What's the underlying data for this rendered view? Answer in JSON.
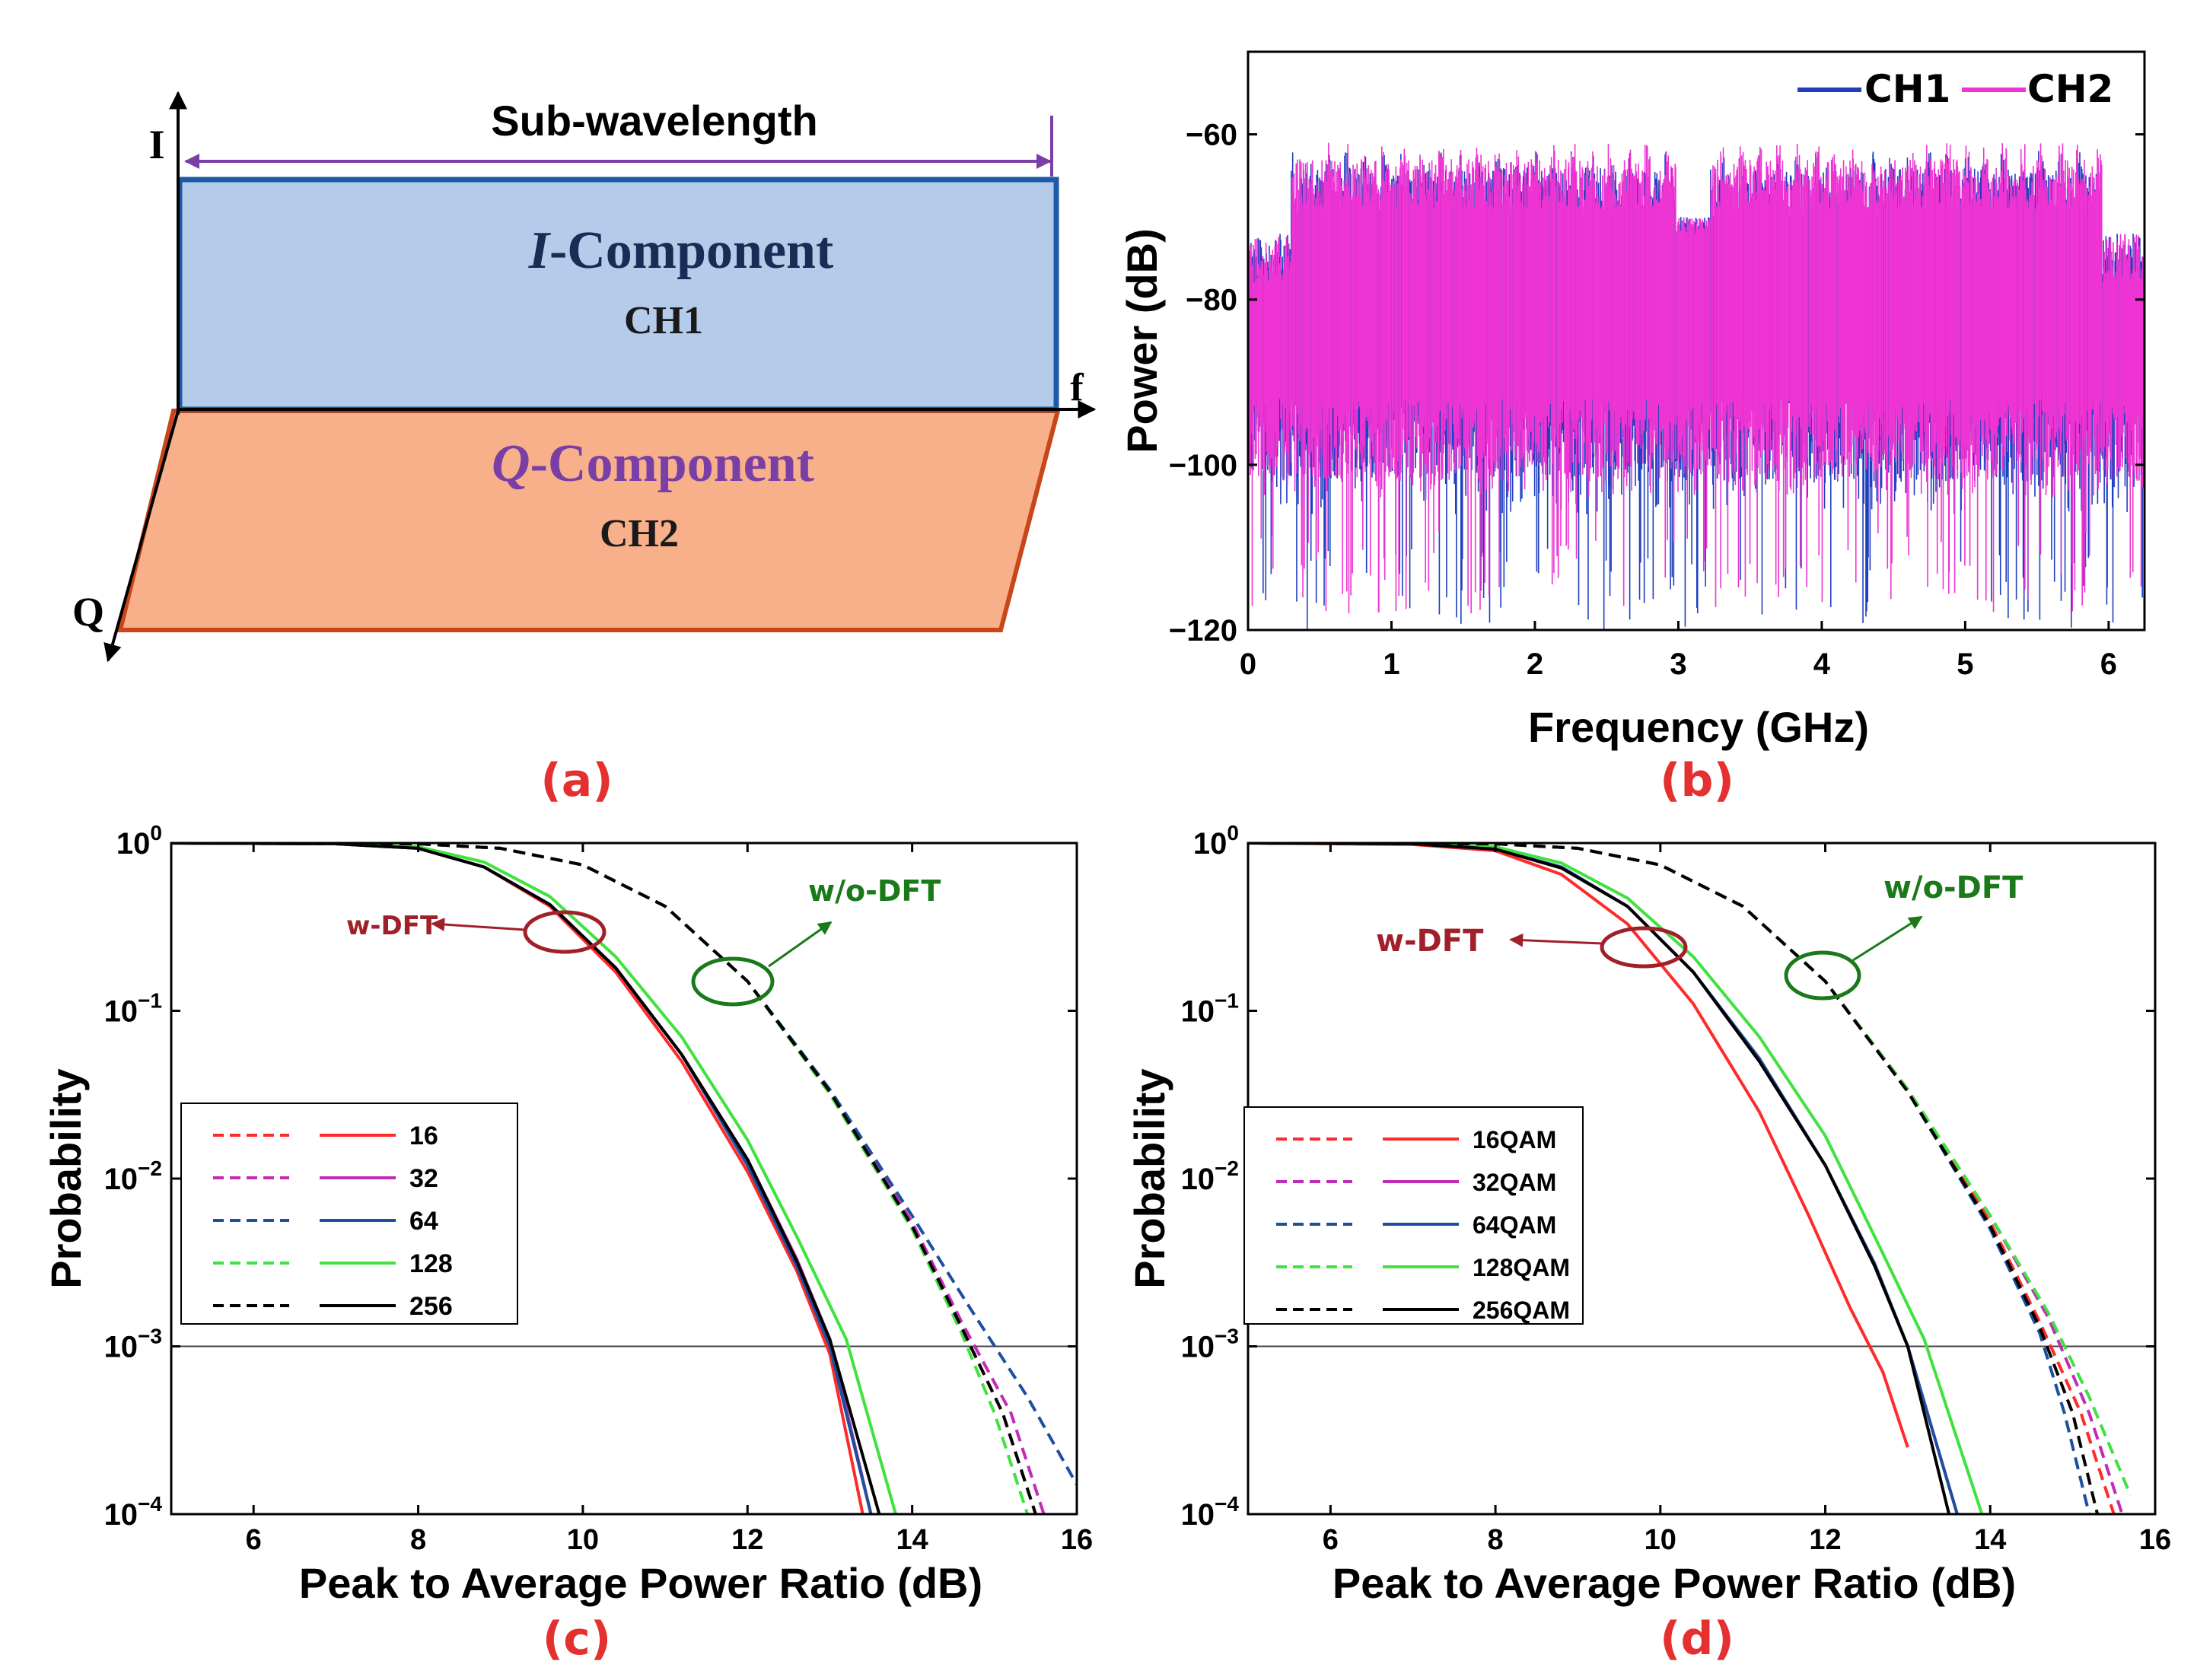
{
  "colors": {
    "ch1": "#1f3fbf",
    "ch2": "#ee34d2",
    "s16": "#ff2a2a",
    "s32": "#c02cb8",
    "s64": "#1d4fa0",
    "s128": "#3fe23f",
    "s256": "#000000",
    "iblock": "#b4cbe9",
    "qblock": "#f7b08a",
    "arrow_purple": "#7a3fa5",
    "wdft": "#a0202a",
    "wodft": "#1a7a1a",
    "panel_label": "#e53030"
  },
  "panel_a": {
    "label": "(a)",
    "axis_i": "I",
    "axis_q": "Q",
    "axis_f": "f",
    "span_label": "Sub-wavelength",
    "i_block": {
      "title_italic": "I",
      "title_rest": "-Component",
      "channel": "CH1"
    },
    "q_block": {
      "title_italic": "Q",
      "title_rest": "-Component",
      "channel": "CH2"
    }
  },
  "chart_data": [
    {
      "panel": "(b)",
      "type": "line",
      "xlabel": "Frequency (GHz)",
      "ylabel": "Power (dB)",
      "xlim": [
        0,
        6.25
      ],
      "ylim": [
        -120,
        -50
      ],
      "xticks": [
        0,
        1,
        2,
        3,
        4,
        5,
        6
      ],
      "yticks": [
        -60,
        -80,
        -100,
        -120
      ],
      "legend": [
        "CH1",
        "CH2"
      ],
      "legend_position": "top-right",
      "series": [
        {
          "name": "CH1",
          "color": "#1f3fbf",
          "envelope_top_db": -62,
          "floor_db": -110,
          "notch_center_ghz": 3.1,
          "notch_top_db": -70,
          "edge_top_db": -72,
          "occupied_ghz": [
            0.3,
            5.95
          ]
        },
        {
          "name": "CH2",
          "color": "#ee34d2",
          "envelope_top_db": -61,
          "floor_db": -108,
          "notch_center_ghz": 3.1,
          "notch_top_db": -70,
          "edge_top_db": -72,
          "occupied_ghz": [
            0.3,
            5.95
          ]
        }
      ]
    },
    {
      "panel": "(c)",
      "type": "line",
      "yscale": "log",
      "xlabel": "Peak to Average Power Ratio (dB)",
      "ylabel": "Probability",
      "xlim": [
        5,
        16
      ],
      "ylim": [
        0.0001,
        1
      ],
      "xticks": [
        6,
        8,
        10,
        12,
        14,
        16
      ],
      "ytick_base": "10",
      "ytick_exps": [
        "0",
        "-1",
        "-2",
        "-3",
        "-4"
      ],
      "reference_line": 0.001,
      "legend_position": "middle-left",
      "annotations": [
        "w-DFT",
        "w/o-DFT"
      ],
      "series": [
        {
          "name": "16",
          "dft": true,
          "color": "#ff2a2a",
          "x": [
            5.0,
            7.0,
            8.0,
            8.8,
            9.6,
            10.4,
            11.2,
            12.0,
            12.6,
            13.0,
            13.4
          ],
          "y": [
            1,
            0.99,
            0.93,
            0.72,
            0.42,
            0.17,
            0.05,
            0.011,
            0.0028,
            0.0009,
            0.0001
          ]
        },
        {
          "name": "32",
          "dft": true,
          "color": "#c02cb8",
          "x": [
            5.0,
            7.0,
            8.0,
            8.8,
            9.6,
            10.4,
            11.2,
            12.0,
            12.6,
            13.0,
            13.5
          ],
          "y": [
            1,
            0.99,
            0.93,
            0.72,
            0.43,
            0.18,
            0.055,
            0.013,
            0.0033,
            0.0011,
            0.0001
          ]
        },
        {
          "name": "64",
          "dft": true,
          "color": "#1d4fa0",
          "x": [
            5.0,
            7.0,
            8.0,
            8.8,
            9.6,
            10.4,
            11.2,
            12.0,
            12.6,
            13.0,
            13.5
          ],
          "y": [
            1,
            0.99,
            0.93,
            0.72,
            0.43,
            0.18,
            0.055,
            0.012,
            0.003,
            0.001,
            0.0001
          ]
        },
        {
          "name": "128",
          "dft": true,
          "color": "#3fe23f",
          "x": [
            5.0,
            7.0,
            8.0,
            8.8,
            9.6,
            10.4,
            11.2,
            12.0,
            12.6,
            13.2,
            13.8
          ],
          "y": [
            1,
            0.99,
            0.95,
            0.77,
            0.48,
            0.21,
            0.07,
            0.017,
            0.0045,
            0.0011,
            0.0001
          ]
        },
        {
          "name": "256",
          "dft": true,
          "color": "#000000",
          "x": [
            5.0,
            7.0,
            8.0,
            8.8,
            9.6,
            10.4,
            11.2,
            12.0,
            12.6,
            13.0,
            13.6
          ],
          "y": [
            1,
            0.99,
            0.93,
            0.72,
            0.43,
            0.18,
            0.055,
            0.013,
            0.0032,
            0.0011,
            0.0001
          ]
        },
        {
          "name": "16",
          "dft": false,
          "color": "#ff2a2a",
          "x": [
            5.0,
            8.0,
            9.0,
            10.0,
            11.0,
            12.0,
            13.0,
            14.0,
            14.6,
            15.1,
            15.5
          ],
          "y": [
            1,
            0.99,
            0.93,
            0.74,
            0.42,
            0.15,
            0.032,
            0.005,
            0.0013,
            0.0004,
            0.0001
          ]
        },
        {
          "name": "32",
          "dft": false,
          "color": "#c02cb8",
          "x": [
            5.0,
            8.0,
            9.0,
            10.0,
            11.0,
            12.0,
            13.0,
            14.0,
            14.6,
            15.2,
            15.6
          ],
          "y": [
            1,
            0.99,
            0.93,
            0.74,
            0.42,
            0.15,
            0.033,
            0.0055,
            0.0014,
            0.0004,
            0.0001
          ]
        },
        {
          "name": "64",
          "dft": false,
          "color": "#1d4fa0",
          "x": [
            5.0,
            8.0,
            9.0,
            10.0,
            11.0,
            12.0,
            13.0,
            14.0,
            14.7,
            15.4,
            16.0
          ],
          "y": [
            1,
            0.99,
            0.93,
            0.74,
            0.42,
            0.15,
            0.034,
            0.006,
            0.0017,
            0.0005,
            0.00015
          ]
        },
        {
          "name": "128",
          "dft": false,
          "color": "#3fe23f",
          "x": [
            5.0,
            8.0,
            9.0,
            10.0,
            11.0,
            12.0,
            13.0,
            14.0,
            14.6,
            15.0,
            15.4
          ],
          "y": [
            1,
            0.99,
            0.93,
            0.74,
            0.42,
            0.15,
            0.032,
            0.005,
            0.0012,
            0.0004,
            0.0001
          ]
        },
        {
          "name": "256",
          "dft": false,
          "color": "#000000",
          "x": [
            5.0,
            8.0,
            9.0,
            10.0,
            11.0,
            12.0,
            13.0,
            14.0,
            14.6,
            15.1,
            15.5
          ],
          "y": [
            1,
            0.99,
            0.93,
            0.74,
            0.42,
            0.15,
            0.033,
            0.0052,
            0.0013,
            0.0004,
            0.0001
          ]
        }
      ]
    },
    {
      "panel": "(d)",
      "type": "line",
      "yscale": "log",
      "xlabel": "Peak to Average Power Ratio (dB)",
      "ylabel": "Probability",
      "xlim": [
        5,
        16
      ],
      "ylim": [
        0.0001,
        1
      ],
      "xticks": [
        6,
        8,
        10,
        12,
        14,
        16
      ],
      "ytick_base": "10",
      "ytick_exps": [
        "0",
        "-1",
        "-2",
        "-3",
        "-4"
      ],
      "reference_line": 0.001,
      "legend_position": "middle-left",
      "annotations": [
        "w-DFT",
        "w/o-DFT"
      ],
      "series": [
        {
          "name": "16QAM",
          "dft": true,
          "color": "#ff2a2a",
          "x": [
            5.0,
            7.0,
            8.0,
            8.8,
            9.6,
            10.4,
            11.2,
            11.8,
            12.3,
            12.7,
            13.0
          ],
          "y": [
            1,
            0.98,
            0.9,
            0.65,
            0.33,
            0.11,
            0.025,
            0.006,
            0.0017,
            0.0007,
            0.00025
          ]
        },
        {
          "name": "32QAM",
          "dft": true,
          "color": "#c02cb8",
          "x": [
            5.0,
            7.0,
            8.0,
            8.8,
            9.6,
            10.4,
            11.2,
            12.0,
            12.6,
            13.0,
            13.6
          ],
          "y": [
            1,
            0.99,
            0.92,
            0.71,
            0.42,
            0.17,
            0.05,
            0.012,
            0.003,
            0.001,
            0.0001
          ]
        },
        {
          "name": "64QAM",
          "dft": true,
          "color": "#1d4fa0",
          "x": [
            5.0,
            7.0,
            8.0,
            8.8,
            9.6,
            10.4,
            11.2,
            12.0,
            12.6,
            13.0,
            13.6
          ],
          "y": [
            1,
            0.99,
            0.92,
            0.72,
            0.42,
            0.17,
            0.052,
            0.012,
            0.0031,
            0.001,
            0.0001
          ]
        },
        {
          "name": "128QAM",
          "dft": true,
          "color": "#3fe23f",
          "x": [
            5.0,
            7.0,
            8.0,
            8.8,
            9.6,
            10.4,
            11.2,
            12.0,
            12.6,
            13.2,
            13.9
          ],
          "y": [
            1,
            0.99,
            0.95,
            0.76,
            0.47,
            0.21,
            0.07,
            0.018,
            0.0045,
            0.0011,
            0.0001
          ]
        },
        {
          "name": "256QAM",
          "dft": true,
          "color": "#000000",
          "x": [
            5.0,
            7.0,
            8.0,
            8.8,
            9.6,
            10.4,
            11.2,
            12.0,
            12.6,
            13.0,
            13.5
          ],
          "y": [
            1,
            0.99,
            0.92,
            0.71,
            0.42,
            0.17,
            0.05,
            0.012,
            0.003,
            0.001,
            0.0001
          ]
        },
        {
          "name": "16QAM",
          "dft": false,
          "color": "#ff2a2a",
          "x": [
            5.0,
            8.0,
            9.0,
            10.0,
            11.0,
            12.0,
            13.0,
            14.0,
            14.6,
            15.1,
            15.5
          ],
          "y": [
            1,
            0.99,
            0.93,
            0.74,
            0.42,
            0.15,
            0.034,
            0.0055,
            0.0014,
            0.0004,
            0.0001
          ]
        },
        {
          "name": "32QAM",
          "dft": false,
          "color": "#c02cb8",
          "x": [
            5.0,
            8.0,
            9.0,
            10.0,
            11.0,
            12.0,
            13.0,
            14.0,
            14.7,
            15.2,
            15.6
          ],
          "y": [
            1,
            0.99,
            0.93,
            0.74,
            0.42,
            0.15,
            0.034,
            0.006,
            0.0015,
            0.0004,
            0.0001
          ]
        },
        {
          "name": "64QAM",
          "dft": false,
          "color": "#1d4fa0",
          "x": [
            5.0,
            8.0,
            9.0,
            10.0,
            11.0,
            12.0,
            13.0,
            14.0,
            14.6,
            14.9,
            15.2
          ],
          "y": [
            1,
            0.99,
            0.93,
            0.74,
            0.42,
            0.15,
            0.033,
            0.005,
            0.0012,
            0.0004,
            0.0001
          ]
        },
        {
          "name": "128QAM",
          "dft": false,
          "color": "#3fe23f",
          "x": [
            5.0,
            8.0,
            9.0,
            10.0,
            11.0,
            12.0,
            13.0,
            14.0,
            14.7,
            15.2,
            15.7
          ],
          "y": [
            1,
            0.99,
            0.93,
            0.74,
            0.42,
            0.15,
            0.034,
            0.006,
            0.0016,
            0.0005,
            0.00013
          ]
        },
        {
          "name": "256QAM",
          "dft": false,
          "color": "#000000",
          "x": [
            5.0,
            8.0,
            9.0,
            10.0,
            11.0,
            12.0,
            13.0,
            14.0,
            14.6,
            15.0,
            15.3
          ],
          "y": [
            1,
            0.99,
            0.93,
            0.74,
            0.42,
            0.15,
            0.033,
            0.0052,
            0.0013,
            0.0004,
            0.0001
          ]
        }
      ]
    }
  ]
}
